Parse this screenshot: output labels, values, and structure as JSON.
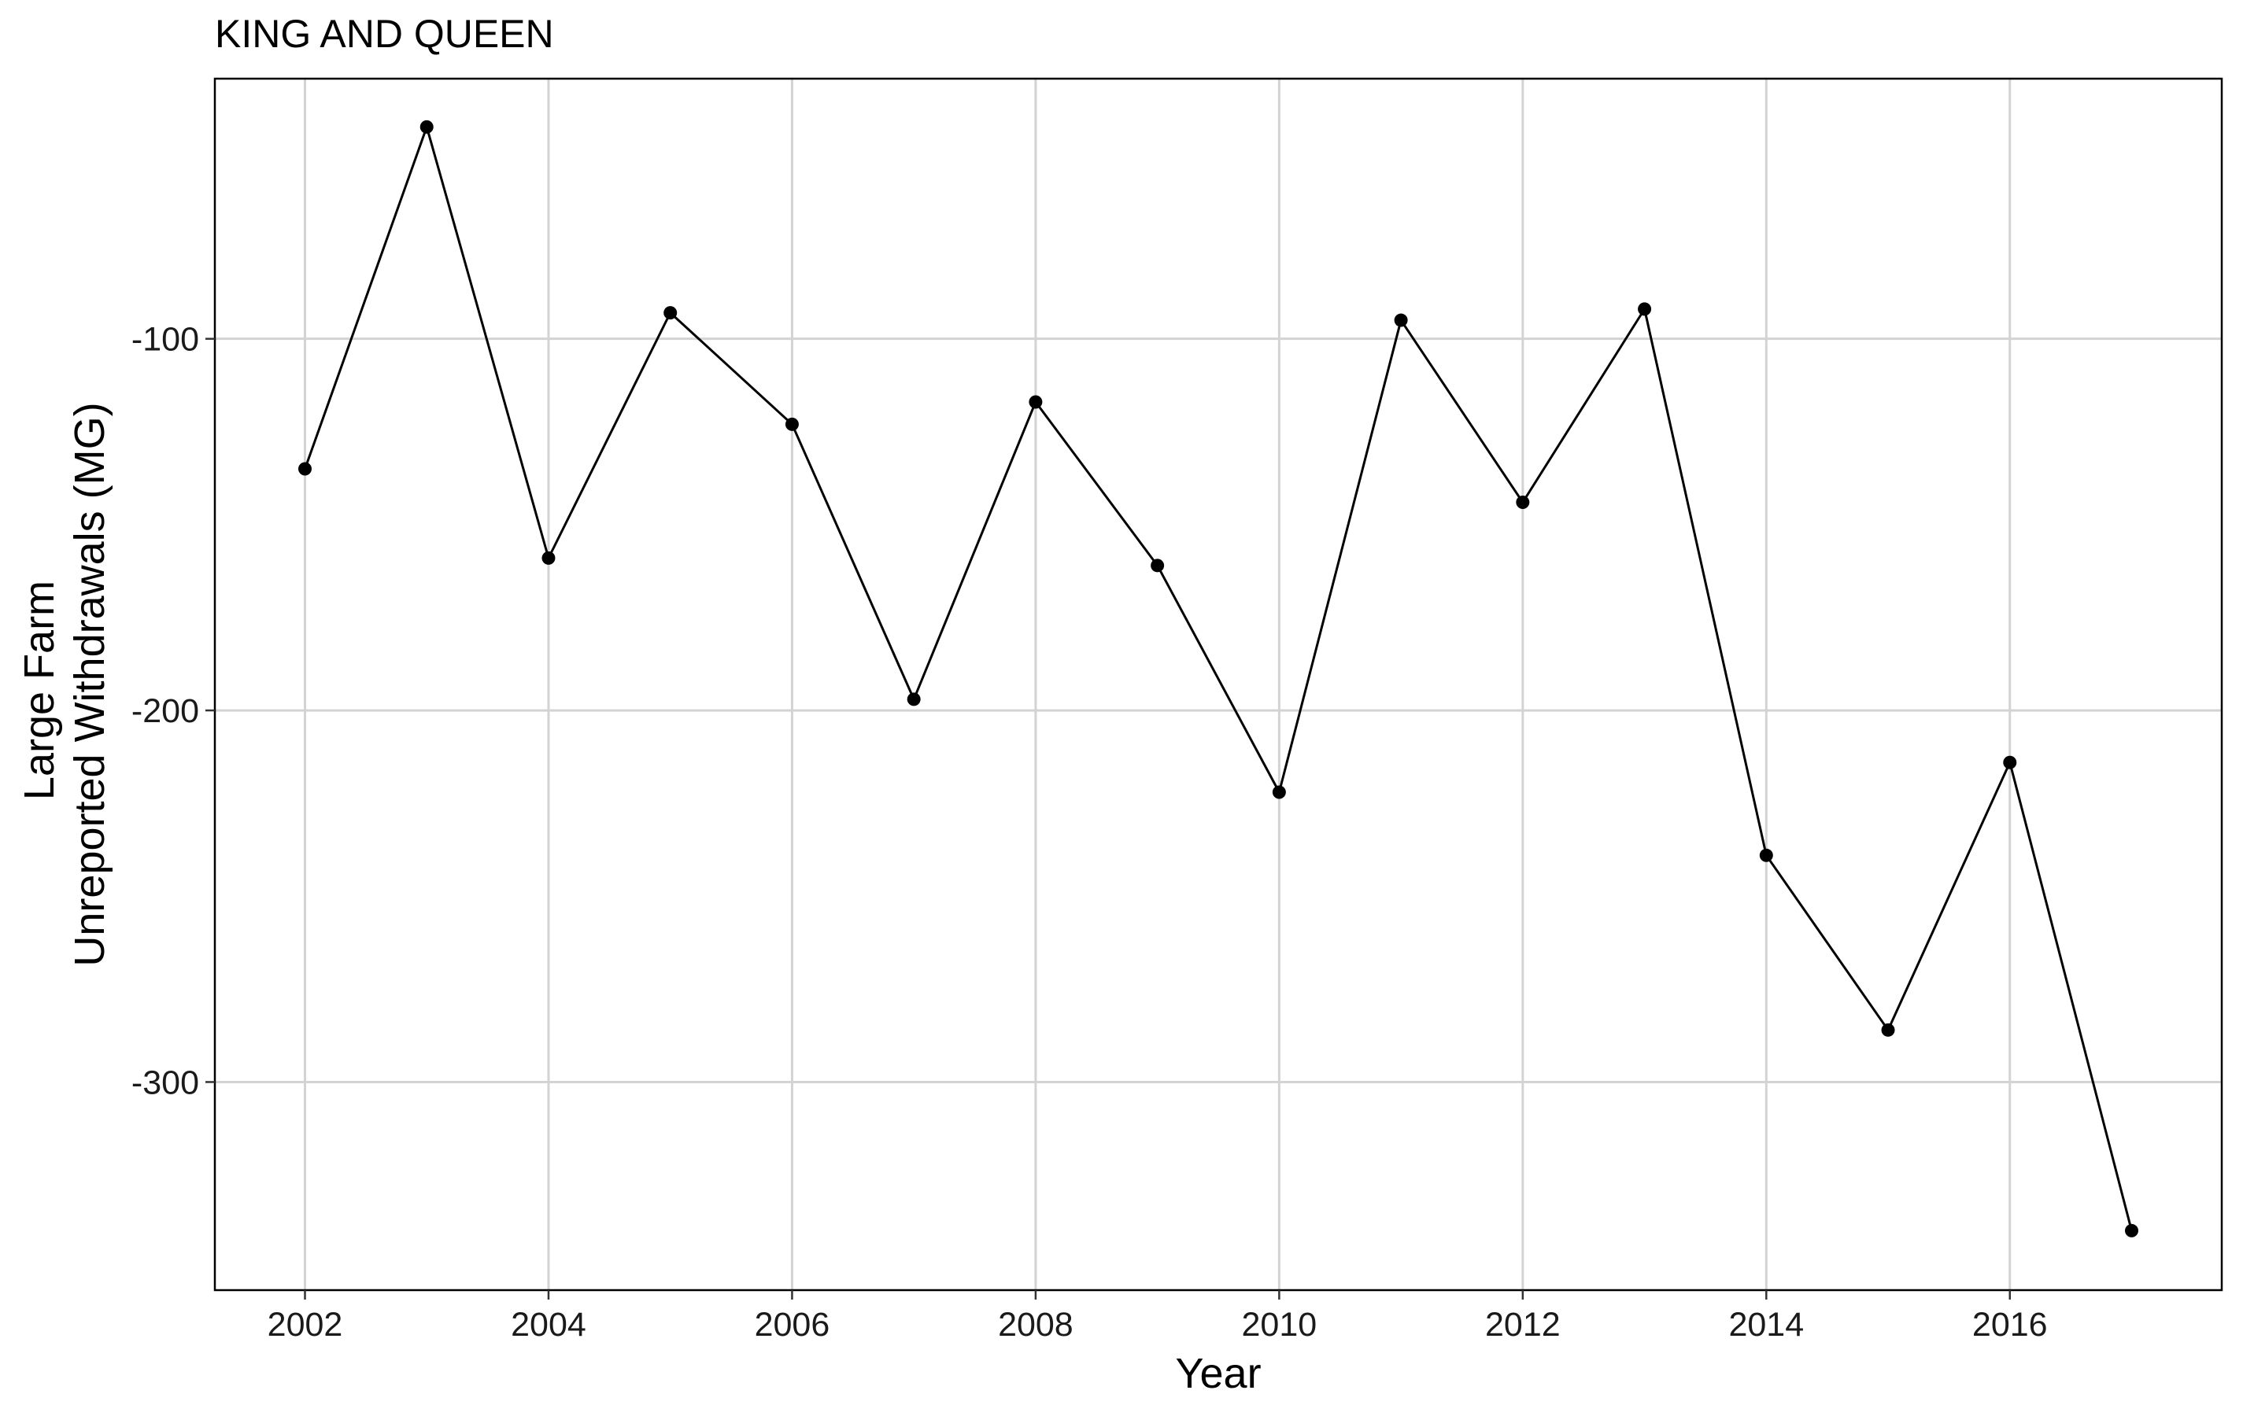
{
  "chart_data": {
    "type": "line",
    "title": "KING AND QUEEN",
    "xlabel": "Year",
    "ylabel": [
      "Large Farm",
      "Unreported Withdrawals (MG)"
    ],
    "x_ticks": [
      2002,
      2004,
      2006,
      2008,
      2010,
      2012,
      2014,
      2016
    ],
    "y_ticks": [
      -100,
      -200,
      -300
    ],
    "xlim": [
      2001.26,
      2017.74
    ],
    "ylim": [
      -356,
      -30
    ],
    "grid": true,
    "legend": "none",
    "colors": {
      "line": "#000000",
      "grid": "#d3d3d3",
      "background": "#ffffff"
    },
    "series": [
      {
        "x": [
          2002,
          2003,
          2004,
          2005,
          2006,
          2007,
          2008,
          2009,
          2010,
          2011,
          2012,
          2013,
          2014,
          2015,
          2016,
          2017
        ],
        "values": [
          -135,
          -43,
          -159,
          -93,
          -123,
          -197,
          -117,
          -161,
          -222,
          -95,
          -144,
          -92,
          -239,
          -286,
          -214,
          -340
        ]
      }
    ]
  }
}
